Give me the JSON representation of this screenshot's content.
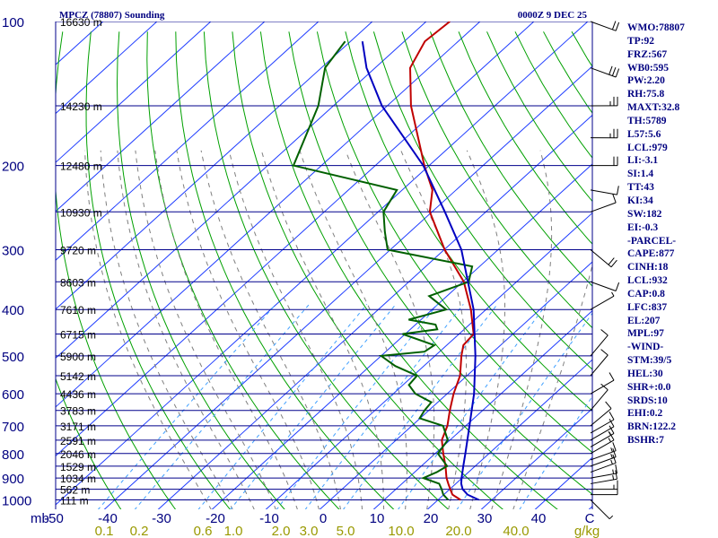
{
  "header": {
    "station": "MPCZ (78807) Sounding",
    "time": "0000Z  9 DEC 25"
  },
  "indices": [
    "WMO:78807",
    "TP:92",
    "FRZ:567",
    "WB0:595",
    "PW:2.20",
    "RH:75.8",
    "MAXT:32.8",
    "TH:5789",
    "L57:5.6",
    "LCL:979",
    "LI:-3.1",
    "SI:1.4",
    "TT:43",
    "KI:34",
    "SW:182",
    "EI:-0.3",
    "-PARCEL-",
    "CAPE:877",
    "CINH:18",
    "LCL:932",
    "CAP:0.8",
    "LFC:837",
    "EL:207",
    "MPL:97",
    "-WIND-",
    "STM:39/5",
    "HEL:30",
    "SHR+:0.0",
    "SRDS:10",
    "EHI:0.2",
    "BRN:122.2",
    "BSHR:7"
  ],
  "colors": {
    "isobar": "#00008b",
    "isotherm": "#1e3cff",
    "dry_adiabat": "#00a000",
    "moist_adiabat": "#7f7f7f",
    "mixing_ratio": "#40a0ff",
    "temperature": "#c00000",
    "dewpoint": "#006000",
    "parcel": "#0000c0",
    "text": "#000080",
    "mixing_label": "#999900",
    "wind": "#000000"
  },
  "chart_data": {
    "type": "line",
    "title": "MPCZ (78807) Sounding",
    "subtitle": "0000Z  9 DEC 25",
    "chart_kind": "skew-T log-p",
    "xlabel": "",
    "ylabel": "mb",
    "pressure_axis_label": "mb",
    "mixing_ratio_unit": "g/kg",
    "ylim": [
      1000,
      100
    ],
    "xlim": [
      -50,
      50
    ],
    "pressure_ticks": [
      "100",
      "200",
      "300",
      "400",
      "500",
      "600",
      "700",
      "800",
      "900",
      "1000"
    ],
    "temperature_ticks": [
      "-50",
      "-40",
      "-30",
      "-20",
      "-10",
      "0",
      "10",
      "20",
      "30",
      "40",
      "C"
    ],
    "mixing_ratio_ticks": [
      "0.1",
      "0.2",
      "0.6",
      "1.0",
      "2.0",
      "3.0",
      "5.0",
      "10.0",
      "20.0",
      "40.0",
      "g/kg"
    ],
    "heights": [
      {
        "p": 100,
        "label": "16630 m"
      },
      {
        "p": 150,
        "label": "14230 m"
      },
      {
        "p": 200,
        "label": "12480 m"
      },
      {
        "p": 250,
        "label": "10930 m"
      },
      {
        "p": 300,
        "label": "9720 m"
      },
      {
        "p": 350,
        "label": "8603 m"
      },
      {
        "p": 400,
        "label": "7610 m"
      },
      {
        "p": 450,
        "label": "6715 m"
      },
      {
        "p": 500,
        "label": "5900 m"
      },
      {
        "p": 550,
        "label": "5142 m"
      },
      {
        "p": 600,
        "label": "4436 m"
      },
      {
        "p": 650,
        "label": "3783 m"
      },
      {
        "p": 700,
        "label": "3171 m"
      },
      {
        "p": 750,
        "label": "2591 m"
      },
      {
        "p": 800,
        "label": "2046 m"
      },
      {
        "p": 850,
        "label": "1529 m"
      },
      {
        "p": 900,
        "label": "1034 m"
      },
      {
        "p": 950,
        "label": "562 m"
      },
      {
        "p": 1000,
        "label": "111 m"
      }
    ],
    "series": [
      {
        "name": "Temperature",
        "points": [
          {
            "p": 1000,
            "t": 24.2
          },
          {
            "p": 975,
            "t": 21.6
          },
          {
            "p": 950,
            "t": 20.1
          },
          {
            "p": 925,
            "t": 18.6
          },
          {
            "p": 900,
            "t": 17.1
          },
          {
            "p": 850,
            "t": 14.5
          },
          {
            "p": 800,
            "t": 11.5
          },
          {
            "p": 750,
            "t": 8.5
          },
          {
            "p": 700,
            "t": 6.6
          },
          {
            "p": 650,
            "t": 3.9
          },
          {
            "p": 600,
            "t": 1.2
          },
          {
            "p": 550,
            "t": -1.3
          },
          {
            "p": 500,
            "t": -5.1
          },
          {
            "p": 475,
            "t": -6.9
          },
          {
            "p": 450,
            "t": -7.3
          },
          {
            "p": 400,
            "t": -12.8
          },
          {
            "p": 350,
            "t": -19.8
          },
          {
            "p": 300,
            "t": -29.9
          },
          {
            "p": 250,
            "t": -40.4
          },
          {
            "p": 225,
            "t": -44.4
          },
          {
            "p": 200,
            "t": -50.9
          },
          {
            "p": 150,
            "t": -65.6
          },
          {
            "p": 125,
            "t": -73.5
          },
          {
            "p": 110,
            "t": -76.2
          },
          {
            "p": 100,
            "t": -75.6
          }
        ]
      },
      {
        "name": "Dewpoint",
        "points": [
          {
            "p": 1000,
            "t": 21.9
          },
          {
            "p": 975,
            "t": 19.9
          },
          {
            "p": 950,
            "t": 18.5
          },
          {
            "p": 925,
            "t": 16.9
          },
          {
            "p": 900,
            "t": 12.8
          },
          {
            "p": 875,
            "t": 14.1
          },
          {
            "p": 850,
            "t": 14.8
          },
          {
            "p": 800,
            "t": 10.5
          },
          {
            "p": 750,
            "t": 9.6
          },
          {
            "p": 700,
            "t": 5.8
          },
          {
            "p": 675,
            "t": -0.1
          },
          {
            "p": 650,
            "t": -0.8
          },
          {
            "p": 625,
            "t": -1.2
          },
          {
            "p": 600,
            "t": -5.9
          },
          {
            "p": 575,
            "t": -8.9
          },
          {
            "p": 550,
            "t": -9.3
          },
          {
            "p": 525,
            "t": -15.3
          },
          {
            "p": 500,
            "t": -20.0
          },
          {
            "p": 490,
            "t": -12.8
          },
          {
            "p": 475,
            "t": -12.3
          },
          {
            "p": 450,
            "t": -20.5
          },
          {
            "p": 440,
            "t": -15.0
          },
          {
            "p": 430,
            "t": -16.3
          },
          {
            "p": 420,
            "t": -22.3
          },
          {
            "p": 400,
            "t": -17.4
          },
          {
            "p": 375,
            "t": -23.3
          },
          {
            "p": 350,
            "t": -18.9
          },
          {
            "p": 325,
            "t": -21.4
          },
          {
            "p": 300,
            "t": -40.5
          },
          {
            "p": 275,
            "t": -44.7
          },
          {
            "p": 250,
            "t": -49.0
          },
          {
            "p": 225,
            "t": -51.0
          },
          {
            "p": 200,
            "t": -75.2
          },
          {
            "p": 150,
            "t": -82.8
          },
          {
            "p": 125,
            "t": -89.3
          },
          {
            "p": 110,
            "t": -91.0
          }
        ]
      },
      {
        "name": "Parcel",
        "points": [
          {
            "p": 1000,
            "t": 27.6
          },
          {
            "p": 975,
            "t": 24.4
          },
          {
            "p": 950,
            "t": 22.4
          },
          {
            "p": 925,
            "t": 21.0
          },
          {
            "p": 900,
            "t": 19.9
          },
          {
            "p": 850,
            "t": 17.8
          },
          {
            "p": 800,
            "t": 15.6
          },
          {
            "p": 700,
            "t": 10.7
          },
          {
            "p": 600,
            "t": 5.0
          },
          {
            "p": 500,
            "t": -2.5
          },
          {
            "p": 400,
            "t": -12.3
          },
          {
            "p": 300,
            "t": -26.8
          },
          {
            "p": 250,
            "t": -37.6
          },
          {
            "p": 200,
            "t": -51.1
          },
          {
            "p": 150,
            "t": -71.0
          },
          {
            "p": 125,
            "t": -81.6
          },
          {
            "p": 110,
            "t": -87.8
          }
        ]
      }
    ],
    "winds": [
      {
        "p": 1000,
        "dir": 135,
        "spd": 5
      },
      {
        "p": 975,
        "dir": 90,
        "spd": 10
      },
      {
        "p": 950,
        "dir": 90,
        "spd": 15
      },
      {
        "p": 925,
        "dir": 80,
        "spd": 15
      },
      {
        "p": 900,
        "dir": 80,
        "spd": 15
      },
      {
        "p": 875,
        "dir": 70,
        "spd": 15
      },
      {
        "p": 850,
        "dir": 70,
        "spd": 15
      },
      {
        "p": 825,
        "dir": 70,
        "spd": 15
      },
      {
        "p": 800,
        "dir": 60,
        "spd": 15
      },
      {
        "p": 775,
        "dir": 60,
        "spd": 15
      },
      {
        "p": 750,
        "dir": 60,
        "spd": 10
      },
      {
        "p": 725,
        "dir": 60,
        "spd": 10
      },
      {
        "p": 700,
        "dir": 50,
        "spd": 10
      },
      {
        "p": 650,
        "dir": 40,
        "spd": 10
      },
      {
        "p": 600,
        "dir": 60,
        "spd": 10
      },
      {
        "p": 550,
        "dir": 40,
        "spd": 10
      },
      {
        "p": 500,
        "dir": 40,
        "spd": 10
      },
      {
        "p": 400,
        "dir": 60,
        "spd": 5
      },
      {
        "p": 350,
        "dir": 110,
        "spd": 10
      },
      {
        "p": 300,
        "dir": 130,
        "spd": 20
      },
      {
        "p": 250,
        "dir": 70,
        "spd": 10
      },
      {
        "p": 225,
        "dir": 100,
        "spd": 10
      },
      {
        "p": 200,
        "dir": 90,
        "spd": 20
      },
      {
        "p": 175,
        "dir": 90,
        "spd": 25
      },
      {
        "p": 150,
        "dir": 90,
        "spd": 25
      },
      {
        "p": 125,
        "dir": 110,
        "spd": 30
      },
      {
        "p": 100,
        "dir": 110,
        "spd": 20
      }
    ]
  }
}
